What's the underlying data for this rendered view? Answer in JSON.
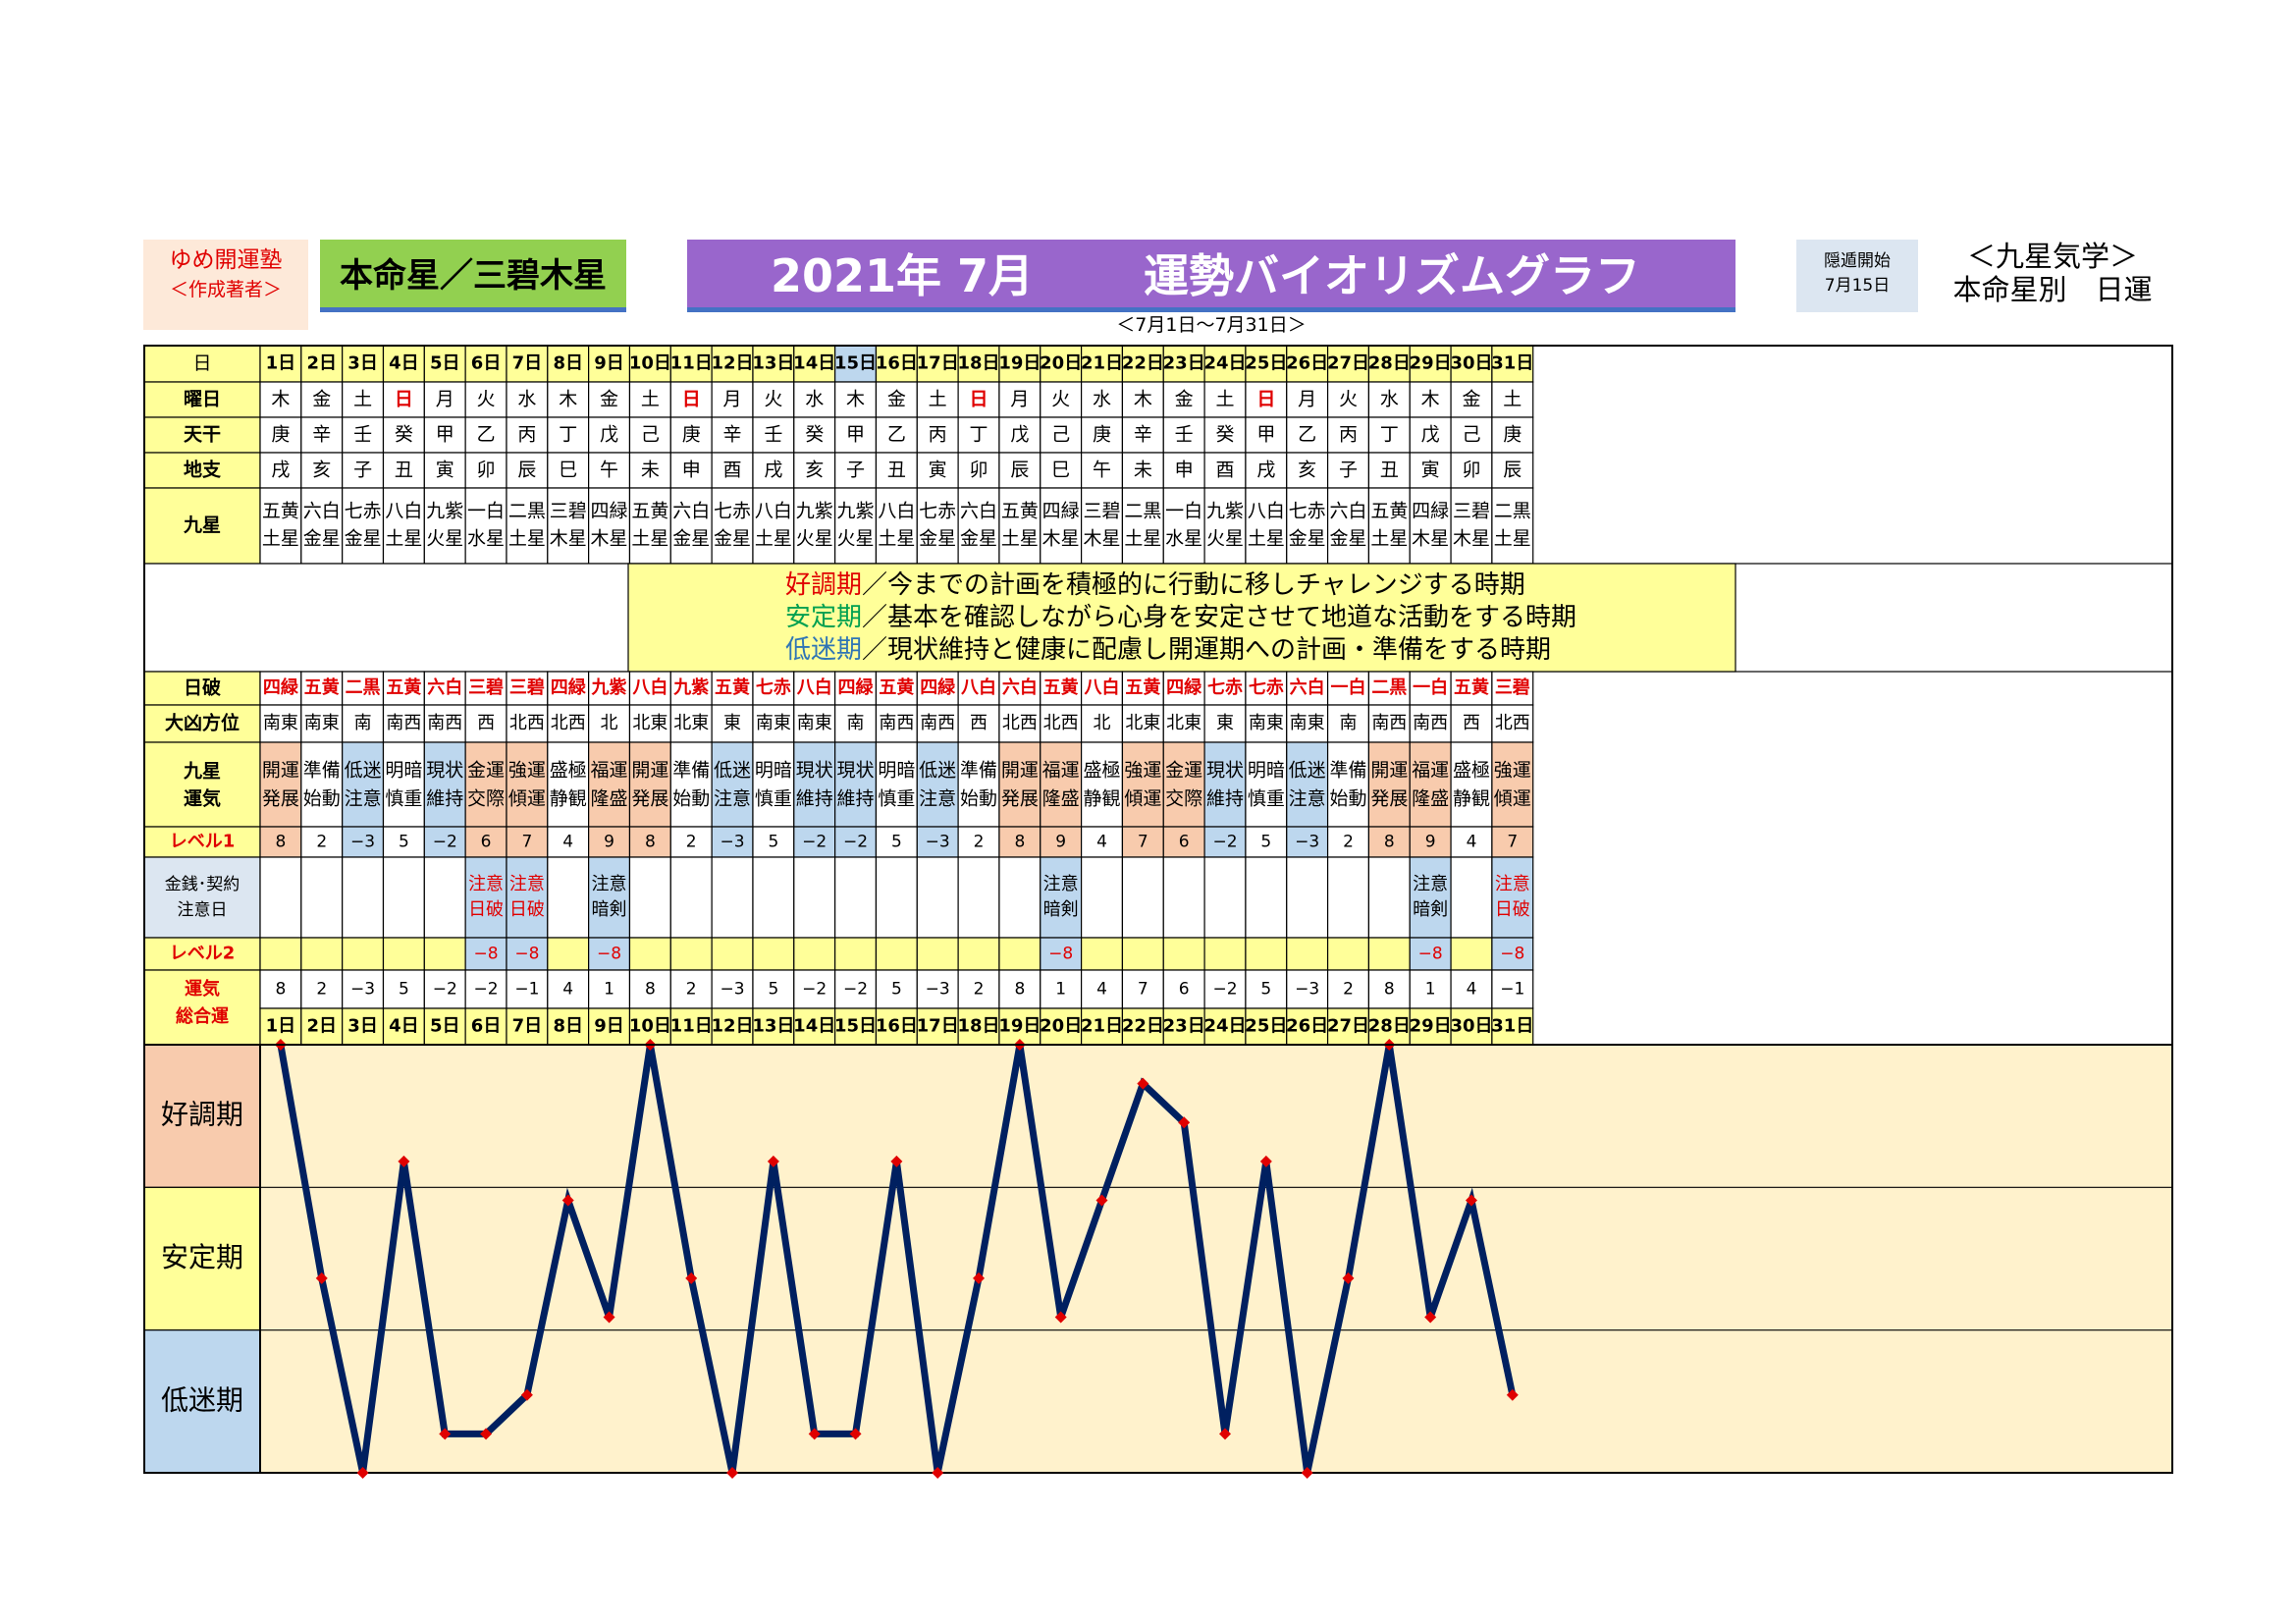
{
  "header": {
    "author_line1": "ゆめ開運塾",
    "author_line2": "＜作成著者＞",
    "honmei": "本命星／三碧木星",
    "title_month": "2021年 7月",
    "title_main": "運勢バイオリズムグラフ",
    "period": "＜7月1日～7月31日＞",
    "onton_label": "隠遁開始",
    "onton_date": "7月15日",
    "kyusei_title": "＜九星気学＞",
    "kyusei_sub": "本命星別　日運"
  },
  "labels": {
    "day": "日",
    "weekday": "曜日",
    "tenkan": "天干",
    "chishi": "地支",
    "kyusei": "九星",
    "nippa": "日破",
    "direction": "大凶方位",
    "unki1": "九星",
    "unki2": "運気",
    "level1": "レベル1",
    "money1": "金銭･契約",
    "money2": "注意日",
    "level2": "レベル2",
    "total1": "運気",
    "total2": "総合運"
  },
  "legend": [
    {
      "term": "好調期",
      "desc": "／今までの計画を積極的に行動に移しチャレンジする時期",
      "color": "#e00000"
    },
    {
      "term": "安定期",
      "desc": "／基本を確認しながら心身を安定させて地道な活動をする時期",
      "color": "#00a050"
    },
    {
      "term": "低迷期",
      "desc": "／現状維持と健康に配慮し開運期への計画・準備をする時期",
      "color": "#2f75b5"
    }
  ],
  "bands": [
    "好調期",
    "安定期",
    "低迷期"
  ],
  "colors": {
    "bg_good": "#f8cbad",
    "bg_stable": "#ffff99",
    "bg_low": "#bdd7ee",
    "bg_label": "#ffff99",
    "bg_chart": "#fff2cc",
    "line": "#002060",
    "marker": "#e00000",
    "red": "#e00000",
    "level_label": "#e00000"
  },
  "days": [
    {
      "d": "1日",
      "w": "木",
      "t": "庚",
      "c": "戌",
      "k1": "五黄",
      "k2": "土星",
      "np": "四緑",
      "dir": "南東",
      "u1": "開運",
      "u2": "発展",
      "cat": "good",
      "l1": "8",
      "m1": "",
      "m2": "",
      "l2": "",
      "tot": "8"
    },
    {
      "d": "2日",
      "w": "金",
      "t": "辛",
      "c": "亥",
      "k1": "六白",
      "k2": "金星",
      "np": "五黄",
      "dir": "南東",
      "u1": "準備",
      "u2": "始動",
      "cat": "none",
      "l1": "2",
      "m1": "",
      "m2": "",
      "l2": "",
      "tot": "2"
    },
    {
      "d": "3日",
      "w": "土",
      "t": "壬",
      "c": "子",
      "k1": "七赤",
      "k2": "金星",
      "np": "二黒",
      "dir": "南",
      "u1": "低迷",
      "u2": "注意",
      "cat": "low",
      "l1": "−3",
      "m1": "",
      "m2": "",
      "l2": "",
      "tot": "−3"
    },
    {
      "d": "4日",
      "w": "日",
      "t": "癸",
      "c": "丑",
      "k1": "八白",
      "k2": "土星",
      "np": "五黄",
      "dir": "南西",
      "u1": "明暗",
      "u2": "慎重",
      "cat": "none",
      "l1": "5",
      "m1": "",
      "m2": "",
      "l2": "",
      "tot": "5"
    },
    {
      "d": "5日",
      "w": "月",
      "t": "甲",
      "c": "寅",
      "k1": "九紫",
      "k2": "火星",
      "np": "六白",
      "dir": "南西",
      "u1": "現状",
      "u2": "維持",
      "cat": "low",
      "l1": "−2",
      "m1": "",
      "m2": "",
      "l2": "",
      "tot": "−2"
    },
    {
      "d": "6日",
      "w": "火",
      "t": "乙",
      "c": "卯",
      "k1": "一白",
      "k2": "水星",
      "np": "三碧",
      "dir": "西",
      "u1": "金運",
      "u2": "交際",
      "cat": "good",
      "l1": "6",
      "m1": "注意",
      "m2": "日破",
      "l2": "−8",
      "tot": "−2"
    },
    {
      "d": "7日",
      "w": "水",
      "t": "丙",
      "c": "辰",
      "k1": "二黒",
      "k2": "土星",
      "np": "三碧",
      "dir": "北西",
      "u1": "強運",
      "u2": "傾運",
      "cat": "good",
      "l1": "7",
      "m1": "注意",
      "m2": "日破",
      "l2": "−8",
      "tot": "−1"
    },
    {
      "d": "8日",
      "w": "木",
      "t": "丁",
      "c": "巳",
      "k1": "三碧",
      "k2": "木星",
      "np": "四緑",
      "dir": "北西",
      "u1": "盛極",
      "u2": "静観",
      "cat": "none",
      "l1": "4",
      "m1": "",
      "m2": "",
      "l2": "",
      "tot": "4"
    },
    {
      "d": "9日",
      "w": "金",
      "t": "戊",
      "c": "午",
      "k1": "四緑",
      "k2": "木星",
      "np": "九紫",
      "dir": "北",
      "u1": "福運",
      "u2": "隆盛",
      "cat": "good",
      "l1": "9",
      "m1": "注意",
      "m2": "暗剣",
      "l2": "−8",
      "tot": "1"
    },
    {
      "d": "10日",
      "w": "土",
      "t": "己",
      "c": "未",
      "k1": "五黄",
      "k2": "土星",
      "np": "八白",
      "dir": "北東",
      "u1": "開運",
      "u2": "発展",
      "cat": "good",
      "l1": "8",
      "m1": "",
      "m2": "",
      "l2": "",
      "tot": "8"
    },
    {
      "d": "11日",
      "w": "日",
      "t": "庚",
      "c": "申",
      "k1": "六白",
      "k2": "金星",
      "np": "九紫",
      "dir": "北東",
      "u1": "準備",
      "u2": "始動",
      "cat": "none",
      "l1": "2",
      "m1": "",
      "m2": "",
      "l2": "",
      "tot": "2"
    },
    {
      "d": "12日",
      "w": "月",
      "t": "辛",
      "c": "酉",
      "k1": "七赤",
      "k2": "金星",
      "np": "五黄",
      "dir": "東",
      "u1": "低迷",
      "u2": "注意",
      "cat": "low",
      "l1": "−3",
      "m1": "",
      "m2": "",
      "l2": "",
      "tot": "−3"
    },
    {
      "d": "13日",
      "w": "火",
      "t": "壬",
      "c": "戌",
      "k1": "八白",
      "k2": "土星",
      "np": "七赤",
      "dir": "南東",
      "u1": "明暗",
      "u2": "慎重",
      "cat": "none",
      "l1": "5",
      "m1": "",
      "m2": "",
      "l2": "",
      "tot": "5"
    },
    {
      "d": "14日",
      "w": "水",
      "t": "癸",
      "c": "亥",
      "k1": "九紫",
      "k2": "火星",
      "np": "八白",
      "dir": "南東",
      "u1": "現状",
      "u2": "維持",
      "cat": "low",
      "l1": "−2",
      "m1": "",
      "m2": "",
      "l2": "",
      "tot": "−2"
    },
    {
      "d": "15日",
      "w": "木",
      "t": "甲",
      "c": "子",
      "k1": "九紫",
      "k2": "火星",
      "np": "四緑",
      "dir": "南",
      "u1": "現状",
      "u2": "維持",
      "cat": "low",
      "l1": "−2",
      "m1": "",
      "m2": "",
      "l2": "",
      "tot": "−2"
    },
    {
      "d": "16日",
      "w": "金",
      "t": "乙",
      "c": "丑",
      "k1": "八白",
      "k2": "土星",
      "np": "五黄",
      "dir": "南西",
      "u1": "明暗",
      "u2": "慎重",
      "cat": "none",
      "l1": "5",
      "m1": "",
      "m2": "",
      "l2": "",
      "tot": "5"
    },
    {
      "d": "17日",
      "w": "土",
      "t": "丙",
      "c": "寅",
      "k1": "七赤",
      "k2": "金星",
      "np": "四緑",
      "dir": "南西",
      "u1": "低迷",
      "u2": "注意",
      "cat": "low",
      "l1": "−3",
      "m1": "",
      "m2": "",
      "l2": "",
      "tot": "−3"
    },
    {
      "d": "18日",
      "w": "日",
      "t": "丁",
      "c": "卯",
      "k1": "六白",
      "k2": "金星",
      "np": "八白",
      "dir": "西",
      "u1": "準備",
      "u2": "始動",
      "cat": "none",
      "l1": "2",
      "m1": "",
      "m2": "",
      "l2": "",
      "tot": "2"
    },
    {
      "d": "19日",
      "w": "月",
      "t": "戊",
      "c": "辰",
      "k1": "五黄",
      "k2": "土星",
      "np": "六白",
      "dir": "北西",
      "u1": "開運",
      "u2": "発展",
      "cat": "good",
      "l1": "8",
      "m1": "",
      "m2": "",
      "l2": "",
      "tot": "8"
    },
    {
      "d": "20日",
      "w": "火",
      "t": "己",
      "c": "巳",
      "k1": "四緑",
      "k2": "木星",
      "np": "五黄",
      "dir": "北西",
      "u1": "福運",
      "u2": "隆盛",
      "cat": "good",
      "l1": "9",
      "m1": "注意",
      "m2": "暗剣",
      "l2": "−8",
      "tot": "1"
    },
    {
      "d": "21日",
      "w": "水",
      "t": "庚",
      "c": "午",
      "k1": "三碧",
      "k2": "木星",
      "np": "八白",
      "dir": "北",
      "u1": "盛極",
      "u2": "静観",
      "cat": "none",
      "l1": "4",
      "m1": "",
      "m2": "",
      "l2": "",
      "tot": "4"
    },
    {
      "d": "22日",
      "w": "木",
      "t": "辛",
      "c": "未",
      "k1": "二黒",
      "k2": "土星",
      "np": "五黄",
      "dir": "北東",
      "u1": "強運",
      "u2": "傾運",
      "cat": "good",
      "l1": "7",
      "m1": "",
      "m2": "",
      "l2": "",
      "tot": "7"
    },
    {
      "d": "23日",
      "w": "金",
      "t": "壬",
      "c": "申",
      "k1": "一白",
      "k2": "水星",
      "np": "四緑",
      "dir": "北東",
      "u1": "金運",
      "u2": "交際",
      "cat": "good",
      "l1": "6",
      "m1": "",
      "m2": "",
      "l2": "",
      "tot": "6"
    },
    {
      "d": "24日",
      "w": "土",
      "t": "癸",
      "c": "酉",
      "k1": "九紫",
      "k2": "火星",
      "np": "七赤",
      "dir": "東",
      "u1": "現状",
      "u2": "維持",
      "cat": "low",
      "l1": "−2",
      "m1": "",
      "m2": "",
      "l2": "",
      "tot": "−2"
    },
    {
      "d": "25日",
      "w": "日",
      "t": "甲",
      "c": "戌",
      "k1": "八白",
      "k2": "土星",
      "np": "七赤",
      "dir": "南東",
      "u1": "明暗",
      "u2": "慎重",
      "cat": "none",
      "l1": "5",
      "m1": "",
      "m2": "",
      "l2": "",
      "tot": "5"
    },
    {
      "d": "26日",
      "w": "月",
      "t": "乙",
      "c": "亥",
      "k1": "七赤",
      "k2": "金星",
      "np": "六白",
      "dir": "南東",
      "u1": "低迷",
      "u2": "注意",
      "cat": "low",
      "l1": "−3",
      "m1": "",
      "m2": "",
      "l2": "",
      "tot": "−3"
    },
    {
      "d": "27日",
      "w": "火",
      "t": "丙",
      "c": "子",
      "k1": "六白",
      "k2": "金星",
      "np": "一白",
      "dir": "南",
      "u1": "準備",
      "u2": "始動",
      "cat": "none",
      "l1": "2",
      "m1": "",
      "m2": "",
      "l2": "",
      "tot": "2"
    },
    {
      "d": "28日",
      "w": "水",
      "t": "丁",
      "c": "丑",
      "k1": "五黄",
      "k2": "土星",
      "np": "二黒",
      "dir": "南西",
      "u1": "開運",
      "u2": "発展",
      "cat": "good",
      "l1": "8",
      "m1": "",
      "m2": "",
      "l2": "",
      "tot": "8"
    },
    {
      "d": "29日",
      "w": "木",
      "t": "戊",
      "c": "寅",
      "k1": "四緑",
      "k2": "木星",
      "np": "一白",
      "dir": "南西",
      "u1": "福運",
      "u2": "隆盛",
      "cat": "good",
      "l1": "9",
      "m1": "注意",
      "m2": "暗剣",
      "l2": "−8",
      "tot": "1"
    },
    {
      "d": "30日",
      "w": "金",
      "t": "己",
      "c": "卯",
      "k1": "三碧",
      "k2": "木星",
      "np": "五黄",
      "dir": "西",
      "u1": "盛極",
      "u2": "静観",
      "cat": "none",
      "l1": "4",
      "m1": "",
      "m2": "",
      "l2": "",
      "tot": "4"
    },
    {
      "d": "31日",
      "w": "土",
      "t": "庚",
      "c": "辰",
      "k1": "二黒",
      "k2": "土星",
      "np": "三碧",
      "dir": "北西",
      "u1": "強運",
      "u2": "傾運",
      "cat": "good",
      "l1": "7",
      "m1": "注意",
      "m2": "日破",
      "l2": "−8",
      "tot": "−1"
    }
  ],
  "highlight_day": "15日",
  "chart_data": {
    "type": "line",
    "x": [
      "1日",
      "2日",
      "3日",
      "4日",
      "5日",
      "6日",
      "7日",
      "8日",
      "9日",
      "10日",
      "11日",
      "12日",
      "13日",
      "14日",
      "15日",
      "16日",
      "17日",
      "18日",
      "19日",
      "20日",
      "21日",
      "22日",
      "23日",
      "24日",
      "25日",
      "26日",
      "27日",
      "28日",
      "29日",
      "30日",
      "31日"
    ],
    "values": [
      8,
      2,
      -3,
      5,
      -2,
      -2,
      -1,
      4,
      1,
      8,
      2,
      -3,
      5,
      -2,
      -2,
      5,
      -3,
      2,
      8,
      1,
      4,
      7,
      6,
      -2,
      5,
      -3,
      2,
      8,
      1,
      4,
      -1
    ],
    "ylim": [
      -3,
      8
    ],
    "bands": [
      "好調期",
      "安定期",
      "低迷期"
    ],
    "grid": true
  }
}
